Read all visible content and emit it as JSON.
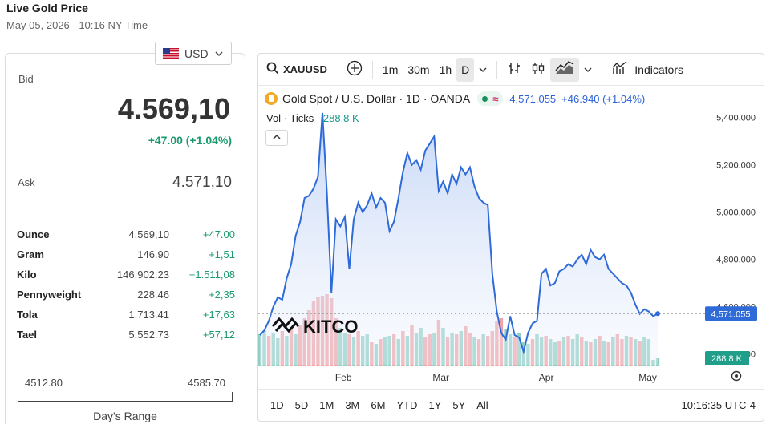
{
  "page": {
    "title": "Live Gold Price",
    "subtitle": "May 05, 2026 - 10:16 NY Time"
  },
  "currency": {
    "selected": "USD",
    "flag_icon": "us-flag-icon"
  },
  "quote": {
    "bid_label": "Bid",
    "bid_value": "4.569,10",
    "bid_change": "+47.00 (+1.04%)",
    "ask_label": "Ask",
    "ask_value": "4.571,10"
  },
  "units": [
    {
      "name": "Ounce",
      "price": "4,569,10",
      "change": "+47.00"
    },
    {
      "name": "Gram",
      "price": "146.90",
      "change": "+1,51"
    },
    {
      "name": "Kilo",
      "price": "146,902.23",
      "change": "+1.511,08"
    },
    {
      "name": "Pennyweight",
      "price": "228.46",
      "change": "+2,35"
    },
    {
      "name": "Tola",
      "price": "1,713.41",
      "change": "+17,63"
    },
    {
      "name": "Tael",
      "price": "5,552.73",
      "change": "+57,12"
    }
  ],
  "day_range": {
    "low": "4512.80",
    "high": "4585.70",
    "label": "Day's Range"
  },
  "chart_toolbar": {
    "symbol": "XAUUSD",
    "intervals": [
      "1m",
      "30m",
      "1h",
      "D"
    ],
    "active_interval": "D",
    "indicators_label": "Indicators"
  },
  "chart_legend": {
    "title": "Gold Spot / U.S. Dollar · 1D · OANDA",
    "last": "4,571.055",
    "change": "+46.940 (+1.04%)",
    "vol_label": "Vol · Ticks",
    "vol_value": "288.8 K"
  },
  "chart_data": {
    "type": "line",
    "x_labels": [
      "Feb",
      "Mar",
      "Apr",
      "May"
    ],
    "y_ticks": [
      "5,400.000",
      "5,200.000",
      "5,000.000",
      "4,800.000",
      "4,600.000",
      "4,400.000"
    ],
    "y_tick_values": [
      5400,
      5200,
      5000,
      4800,
      4600,
      4400
    ],
    "ylim": [
      4355,
      5460
    ],
    "last_price": 4571.055,
    "last_price_label": "4,571.055",
    "volume_label": "288.8 K",
    "watermark": "KITCO",
    "colors": {
      "line": "#2f6bd8",
      "vol_up": "#8fd0c4",
      "vol_down": "#f1a3a6",
      "last_price_bg": "#2f6bd8",
      "vol_badge_bg": "#1f9e8a"
    },
    "series": [
      {
        "values": [
          4480,
          4500,
          4540,
          4600,
          4640,
          4630,
          4720,
          4780,
          4900,
          4960,
          5060,
          5070,
          5100,
          5150,
          5420,
          5080,
          4660,
          4970,
          4940,
          4980,
          4760,
          4970,
          5040,
          5000,
          5030,
          5080,
          5020,
          5060,
          5040,
          4920,
          4960,
          5060,
          5170,
          5250,
          5200,
          5220,
          5180,
          5260,
          5290,
          5320,
          5090,
          5130,
          5080,
          5160,
          5120,
          5190,
          5160,
          5190,
          5110,
          5060,
          5040,
          5030,
          4740,
          4580,
          4490,
          4460,
          4560,
          4480,
          4470,
          4410,
          4490,
          4530,
          4540,
          4740,
          4760,
          4690,
          4700,
          4750,
          4760,
          4780,
          4770,
          4800,
          4820,
          4780,
          4840,
          4810,
          4800,
          4820,
          4760,
          4740,
          4720,
          4700,
          4690,
          4660,
          4610,
          4570,
          4590,
          4580,
          4560,
          4571
        ]
      },
      {
        "name": "Vol · Ticks",
        "volume": [
          40,
          45,
          38,
          42,
          35,
          44,
          38,
          46,
          40,
          52,
          60,
          70,
          82,
          86,
          88,
          90,
          85,
          60,
          48,
          42,
          40,
          36,
          44,
          38,
          40,
          30,
          28,
          34,
          36,
          38,
          40,
          34,
          44,
          38,
          52,
          42,
          48,
          36,
          40,
          42,
          58,
          48,
          36,
          42,
          40,
          44,
          50,
          42,
          36,
          34,
          40,
          38,
          44,
          56,
          60,
          46,
          40,
          36,
          42,
          30,
          28,
          34,
          40,
          36,
          38,
          34,
          30,
          32,
          36,
          38,
          34,
          40,
          36,
          32,
          30,
          34,
          38,
          32,
          30,
          36,
          40,
          34,
          38,
          36,
          34,
          32,
          36,
          34,
          8,
          10
        ],
        "volume_up": [
          true,
          true,
          false,
          true,
          true,
          false,
          true,
          false,
          true,
          false,
          false,
          false,
          false,
          false,
          false,
          false,
          false,
          false,
          true,
          true,
          false,
          true,
          false,
          true,
          true,
          false,
          true,
          false,
          true,
          true,
          false,
          true,
          false,
          true,
          false,
          true,
          true,
          false,
          false,
          true,
          false,
          true,
          false,
          true,
          false,
          true,
          false,
          false,
          true,
          false,
          true,
          false,
          false,
          false,
          false,
          true,
          true,
          false,
          true,
          true,
          true,
          false,
          true,
          true,
          false,
          true,
          true,
          false,
          true,
          false,
          true,
          true,
          false,
          true,
          false,
          true,
          false,
          true,
          false,
          true,
          false,
          false,
          true,
          false,
          true,
          false,
          true,
          true,
          true,
          true
        ]
      }
    ]
  },
  "range_buttons": [
    "1D",
    "5D",
    "1M",
    "3M",
    "6M",
    "YTD",
    "1Y",
    "5Y",
    "All"
  ],
  "clock": "10:16:35 UTC-4"
}
